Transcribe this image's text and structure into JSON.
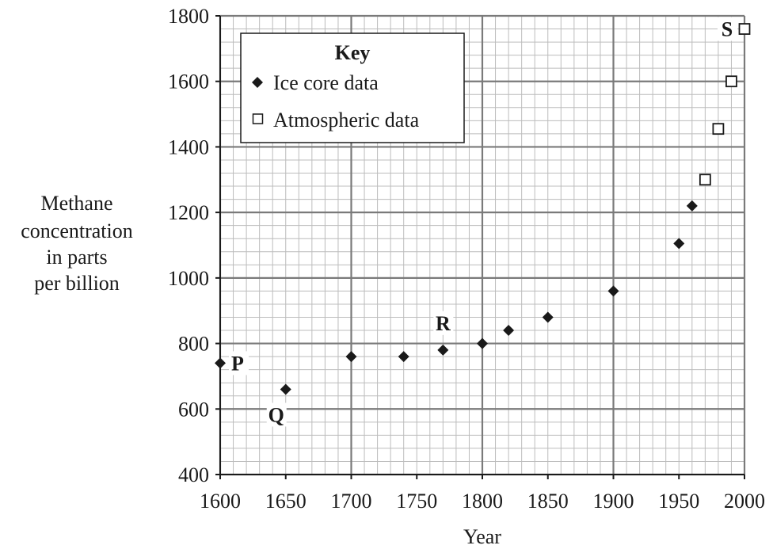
{
  "chart_data": {
    "type": "scatter",
    "title": "",
    "xlabel": "Year",
    "ylabel_lines": [
      "Methane",
      "concentration",
      "in parts",
      "per billion"
    ],
    "xlim": [
      1600,
      2000
    ],
    "ylim": [
      400,
      1800
    ],
    "x_ticks": [
      1600,
      1650,
      1700,
      1750,
      1800,
      1850,
      1900,
      1950,
      2000
    ],
    "y_ticks": [
      400,
      600,
      800,
      1000,
      1200,
      1400,
      1600,
      1800
    ],
    "x_minor_step": 10,
    "y_minor_step": 40,
    "grid": true,
    "legend": {
      "title": "Key",
      "position": "top-left",
      "entries": [
        {
          "marker": "filled-diamond",
          "label": "Ice core data"
        },
        {
          "marker": "open-square",
          "label": "Atmospheric data"
        }
      ]
    },
    "series": [
      {
        "name": "Ice core data",
        "marker": "filled-diamond",
        "points": [
          {
            "x": 1600,
            "y": 740
          },
          {
            "x": 1650,
            "y": 660
          },
          {
            "x": 1700,
            "y": 760
          },
          {
            "x": 1740,
            "y": 760
          },
          {
            "x": 1770,
            "y": 780
          },
          {
            "x": 1800,
            "y": 800
          },
          {
            "x": 1820,
            "y": 840
          },
          {
            "x": 1850,
            "y": 880
          },
          {
            "x": 1900,
            "y": 960
          },
          {
            "x": 1950,
            "y": 1105
          },
          {
            "x": 1960,
            "y": 1220
          }
        ]
      },
      {
        "name": "Atmospheric data",
        "marker": "open-square",
        "points": [
          {
            "x": 1970,
            "y": 1300
          },
          {
            "x": 1980,
            "y": 1455
          },
          {
            "x": 1990,
            "y": 1600
          },
          {
            "x": 2000,
            "y": 1760
          }
        ]
      }
    ],
    "annotations": [
      {
        "text": "P",
        "x": 1600,
        "y": 740
      },
      {
        "text": "Q",
        "x": 1650,
        "y": 660
      },
      {
        "text": "R",
        "x": 1770,
        "y": 780
      },
      {
        "text": "S",
        "x": 2000,
        "y": 1760
      }
    ],
    "colors": {
      "ink": "#1a1a1a",
      "grid_major": "#7a7a7a",
      "grid_minor": "#bcbcbc",
      "background": "#ffffff"
    }
  }
}
